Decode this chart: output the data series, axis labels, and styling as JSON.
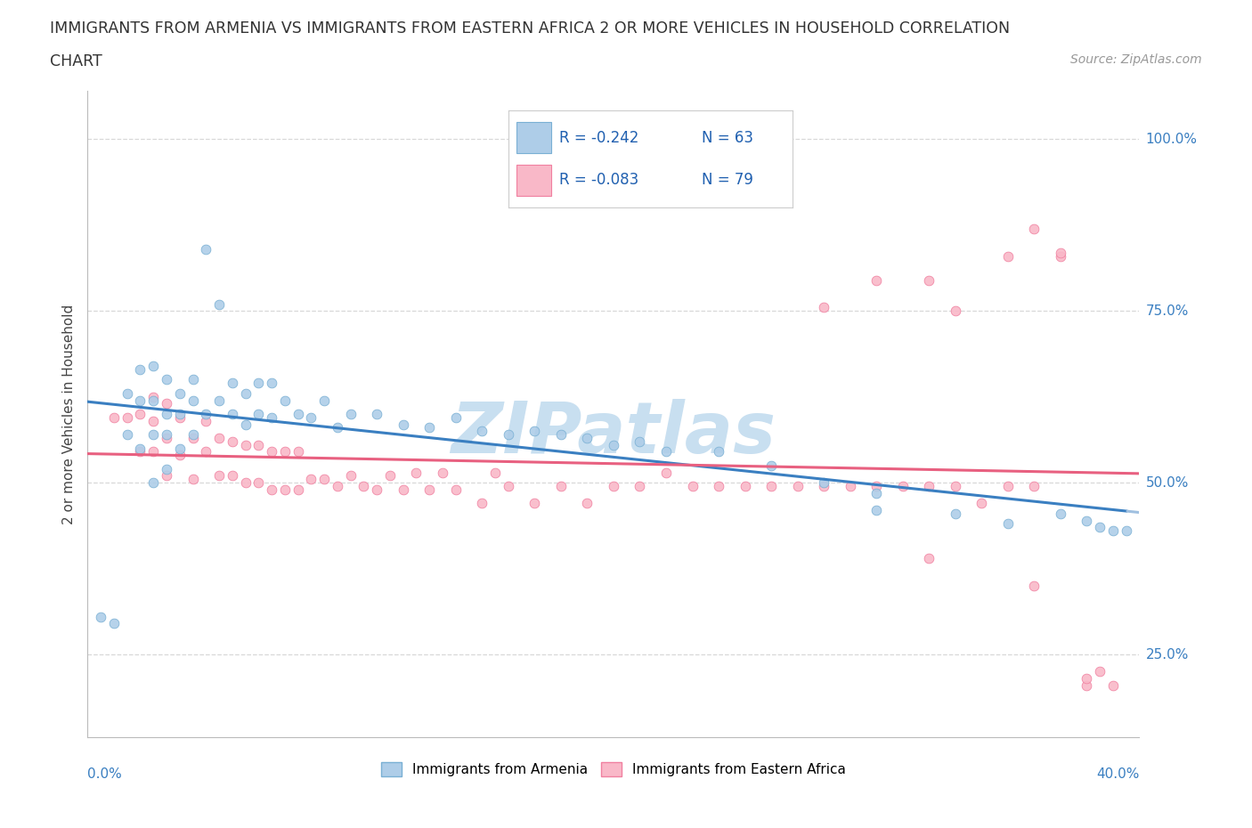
{
  "title_line1": "IMMIGRANTS FROM ARMENIA VS IMMIGRANTS FROM EASTERN AFRICA 2 OR MORE VEHICLES IN HOUSEHOLD CORRELATION",
  "title_line2": "CHART",
  "source": "Source: ZipAtlas.com",
  "ylabel": "2 or more Vehicles in Household",
  "legend_r1": "R = -0.242",
  "legend_n1": "N = 63",
  "legend_r2": "R = -0.083",
  "legend_n2": "N = 79",
  "color_armenia": "#aecde8",
  "color_armenia_edge": "#7ab0d4",
  "color_eastern_africa": "#f9b8c8",
  "color_eastern_africa_edge": "#f080a0",
  "color_armenia_line": "#3a7fc1",
  "color_eastern_africa_line": "#e86080",
  "color_dashed": "#a0c0e0",
  "watermark_color": "#c8dff0",
  "xlim": [
    0.0,
    0.4
  ],
  "ylim": [
    0.13,
    1.07
  ],
  "ytick_vals": [
    0.25,
    0.5,
    0.75,
    1.0
  ],
  "ytick_labels": [
    "25.0%",
    "50.0%",
    "75.0%",
    "100.0%"
  ],
  "arm_x": [
    0.005,
    0.01,
    0.015,
    0.015,
    0.02,
    0.02,
    0.02,
    0.025,
    0.025,
    0.025,
    0.025,
    0.03,
    0.03,
    0.03,
    0.03,
    0.035,
    0.035,
    0.035,
    0.04,
    0.04,
    0.04,
    0.045,
    0.045,
    0.05,
    0.05,
    0.055,
    0.055,
    0.06,
    0.06,
    0.065,
    0.065,
    0.07,
    0.07,
    0.075,
    0.08,
    0.085,
    0.09,
    0.095,
    0.1,
    0.11,
    0.12,
    0.13,
    0.14,
    0.15,
    0.16,
    0.17,
    0.18,
    0.19,
    0.2,
    0.21,
    0.22,
    0.24,
    0.26,
    0.28,
    0.3,
    0.3,
    0.33,
    0.35,
    0.37,
    0.38,
    0.385,
    0.39,
    0.395
  ],
  "arm_y": [
    0.305,
    0.295,
    0.57,
    0.63,
    0.55,
    0.62,
    0.665,
    0.5,
    0.57,
    0.62,
    0.67,
    0.52,
    0.57,
    0.6,
    0.65,
    0.55,
    0.6,
    0.63,
    0.57,
    0.62,
    0.65,
    0.84,
    0.6,
    0.76,
    0.62,
    0.6,
    0.645,
    0.585,
    0.63,
    0.6,
    0.645,
    0.595,
    0.645,
    0.62,
    0.6,
    0.595,
    0.62,
    0.58,
    0.6,
    0.6,
    0.585,
    0.58,
    0.595,
    0.575,
    0.57,
    0.575,
    0.57,
    0.565,
    0.555,
    0.56,
    0.545,
    0.545,
    0.525,
    0.5,
    0.485,
    0.46,
    0.455,
    0.44,
    0.455,
    0.445,
    0.435,
    0.43,
    0.43
  ],
  "eaf_x": [
    0.01,
    0.015,
    0.02,
    0.02,
    0.025,
    0.025,
    0.025,
    0.03,
    0.03,
    0.03,
    0.035,
    0.035,
    0.04,
    0.04,
    0.045,
    0.045,
    0.05,
    0.05,
    0.055,
    0.055,
    0.06,
    0.06,
    0.065,
    0.065,
    0.07,
    0.07,
    0.075,
    0.075,
    0.08,
    0.08,
    0.085,
    0.09,
    0.095,
    0.1,
    0.105,
    0.11,
    0.115,
    0.12,
    0.125,
    0.13,
    0.135,
    0.14,
    0.15,
    0.155,
    0.16,
    0.17,
    0.18,
    0.19,
    0.2,
    0.21,
    0.22,
    0.23,
    0.24,
    0.25,
    0.26,
    0.27,
    0.28,
    0.29,
    0.3,
    0.31,
    0.32,
    0.33,
    0.34,
    0.35,
    0.36,
    0.28,
    0.3,
    0.32,
    0.33,
    0.35,
    0.36,
    0.37,
    0.37,
    0.38,
    0.385,
    0.39,
    0.38,
    0.36,
    0.32
  ],
  "eaf_y": [
    0.595,
    0.595,
    0.545,
    0.6,
    0.545,
    0.59,
    0.625,
    0.51,
    0.565,
    0.615,
    0.54,
    0.595,
    0.505,
    0.565,
    0.545,
    0.59,
    0.51,
    0.565,
    0.51,
    0.56,
    0.5,
    0.555,
    0.5,
    0.555,
    0.49,
    0.545,
    0.49,
    0.545,
    0.49,
    0.545,
    0.505,
    0.505,
    0.495,
    0.51,
    0.495,
    0.49,
    0.51,
    0.49,
    0.515,
    0.49,
    0.515,
    0.49,
    0.47,
    0.515,
    0.495,
    0.47,
    0.495,
    0.47,
    0.495,
    0.495,
    0.515,
    0.495,
    0.495,
    0.495,
    0.495,
    0.495,
    0.495,
    0.495,
    0.495,
    0.495,
    0.495,
    0.495,
    0.47,
    0.495,
    0.495,
    0.755,
    0.795,
    0.795,
    0.75,
    0.83,
    0.87,
    0.83,
    0.835,
    0.205,
    0.225,
    0.205,
    0.215,
    0.35,
    0.39
  ]
}
